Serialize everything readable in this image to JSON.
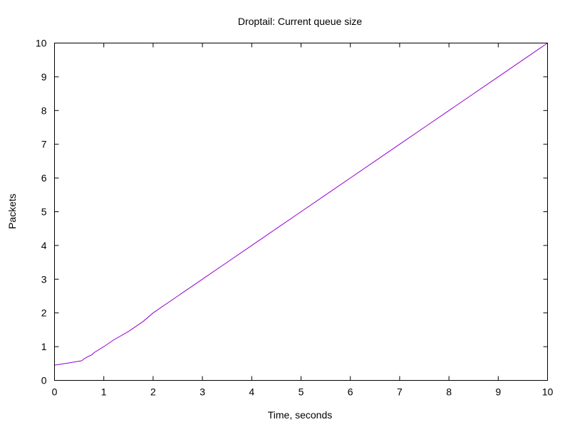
{
  "chart_data": {
    "type": "line",
    "title": "Droptail: Current queue size",
    "xlabel": "Time, seconds",
    "ylabel": "Packets",
    "xlim": [
      0,
      10
    ],
    "ylim": [
      0,
      10
    ],
    "xticks": [
      0,
      1,
      2,
      3,
      4,
      5,
      6,
      7,
      8,
      9,
      10
    ],
    "yticks": [
      0,
      1,
      2,
      3,
      4,
      5,
      6,
      7,
      8,
      9,
      10
    ],
    "grid": false,
    "legend": "none",
    "series": [
      {
        "color": "#9400d3",
        "x": [
          0,
          0.3,
          0.5,
          0.55,
          0.6,
          0.7,
          0.76,
          0.8,
          1.0,
          1.2,
          1.5,
          1.8,
          2.0,
          2.5,
          3.0,
          3.5,
          4.0,
          4.5,
          5.0,
          5.5,
          6.0,
          6.5,
          7.0,
          7.5,
          8.0,
          8.5,
          9.0,
          9.5,
          10.0
        ],
        "y": [
          0.45,
          0.52,
          0.57,
          0.58,
          0.64,
          0.72,
          0.76,
          0.82,
          1.0,
          1.2,
          1.45,
          1.75,
          2.0,
          2.5,
          3.0,
          3.5,
          4.0,
          4.5,
          5.0,
          5.5,
          6.0,
          6.5,
          7.0,
          7.5,
          8.0,
          8.5,
          9.0,
          9.5,
          10.0
        ]
      }
    ]
  }
}
